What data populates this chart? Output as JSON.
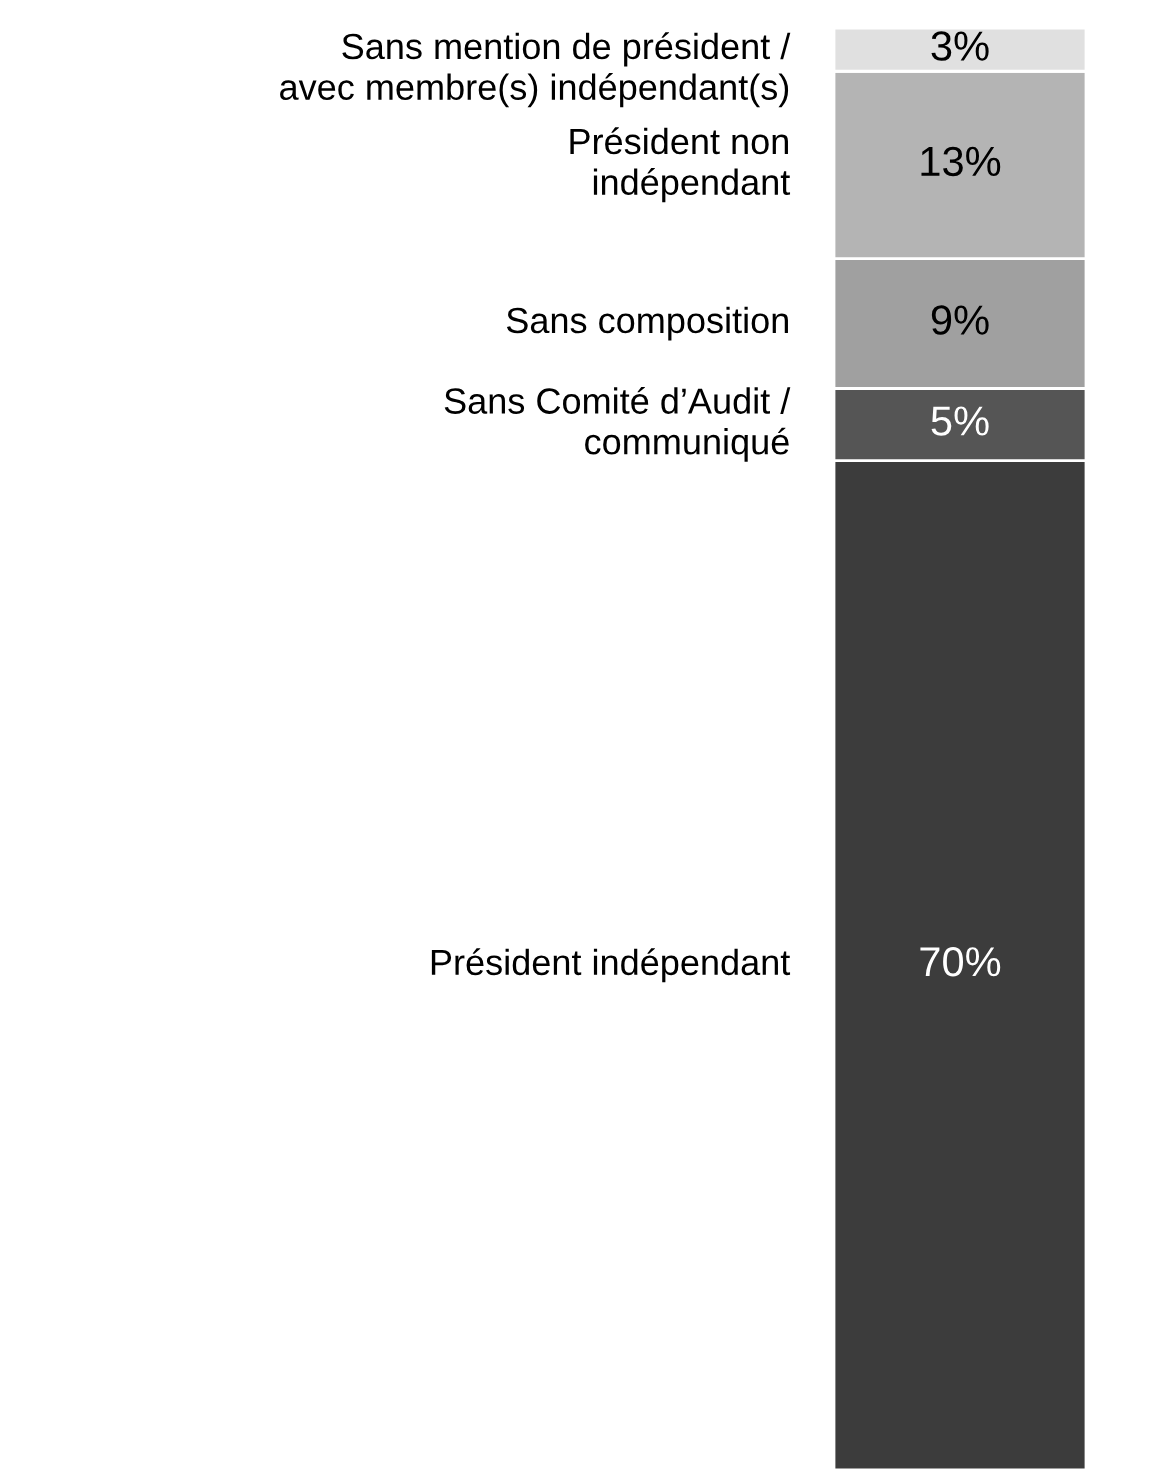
{
  "chart_data": {
    "type": "bar",
    "stacked": true,
    "categories": [
      null
    ],
    "series": [
      {
        "name": "Président indépendant",
        "color": "#3c3c3c",
        "values": [
          70
        ],
        "value_labels": [
          "70%"
        ]
      },
      {
        "name": "Sans Comité d’Audit /\ncommuniqué",
        "color": "#555555",
        "values": [
          5
        ],
        "value_labels": [
          "5%"
        ]
      },
      {
        "name": "Sans composition",
        "color": "#a0a0a0",
        "values": [
          9
        ],
        "value_labels": [
          "9%"
        ]
      },
      {
        "name": "Président non\nindépendant",
        "color": "#b4b4b4",
        "values": [
          13
        ],
        "value_labels": [
          "13%"
        ]
      },
      {
        "name": "Sans mention de président /\navec membre(s) indépendant(s)",
        "color": "#e0e0e0",
        "values": [
          3
        ],
        "value_labels": [
          "3%"
        ]
      }
    ]
  }
}
